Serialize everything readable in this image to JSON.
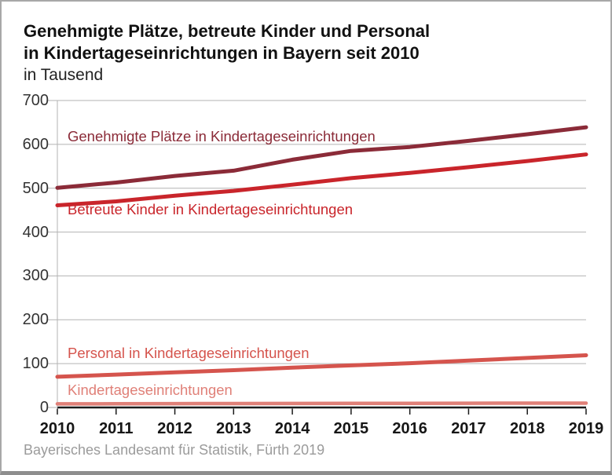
{
  "chart_data": {
    "type": "line",
    "title": "Genehmigte Plätze, betreute Kinder und Personal in Kindertageseinrichtungen in Bayern seit 2010",
    "title_lines": [
      "Genehmigte Plätze, betreute Kinder und Personal",
      "in Kindertageseinrichtungen in Bayern seit 2010"
    ],
    "subtitle": "in Tausend",
    "source": "Bayerisches Landesamt für Statistik, Fürth 2019",
    "x": [
      2010,
      2011,
      2012,
      2013,
      2014,
      2015,
      2016,
      2017,
      2018,
      2019
    ],
    "series": [
      {
        "name": "Genehmigte Plätze in Kindertageseinrichtungen",
        "color": "#8b2b38",
        "values": [
          501,
          513,
          528,
          540,
          565,
          585,
          594,
          608,
          623,
          639
        ]
      },
      {
        "name": "Betreute Kinder in Kindertageseinrichtungen",
        "color": "#c9252b",
        "values": [
          461,
          470,
          483,
          494,
          508,
          523,
          535,
          548,
          562,
          577
        ]
      },
      {
        "name": "Personal in Kindertageseinrichtungen",
        "color": "#d5544d",
        "values": [
          70,
          75,
          80,
          85,
          91,
          96,
          101,
          107,
          113,
          119
        ]
      },
      {
        "name": "Kindertageseinrichtungen",
        "color": "#e08078",
        "values": [
          8.3,
          8.5,
          8.7,
          8.9,
          9.1,
          9.3,
          9.5,
          9.6,
          9.8,
          9.9
        ]
      }
    ],
    "ylim": [
      0,
      700
    ],
    "ytick_step": 100,
    "y_tick_labels": [
      "0",
      "100",
      "200",
      "300",
      "400",
      "500",
      "600",
      "700"
    ],
    "x_tick_labels": [
      "2010",
      "2011",
      "2012",
      "2013",
      "2014",
      "2015",
      "2016",
      "2017",
      "2018",
      "2019"
    ],
    "grid": true,
    "legend_position": "inline-labels",
    "colors": {
      "grid_line": "#b3b3b3",
      "zero_axis": "#1a1a1a",
      "y_label": "#333333",
      "x_label": "#161616",
      "footer_text": "#9b9b9b"
    }
  }
}
